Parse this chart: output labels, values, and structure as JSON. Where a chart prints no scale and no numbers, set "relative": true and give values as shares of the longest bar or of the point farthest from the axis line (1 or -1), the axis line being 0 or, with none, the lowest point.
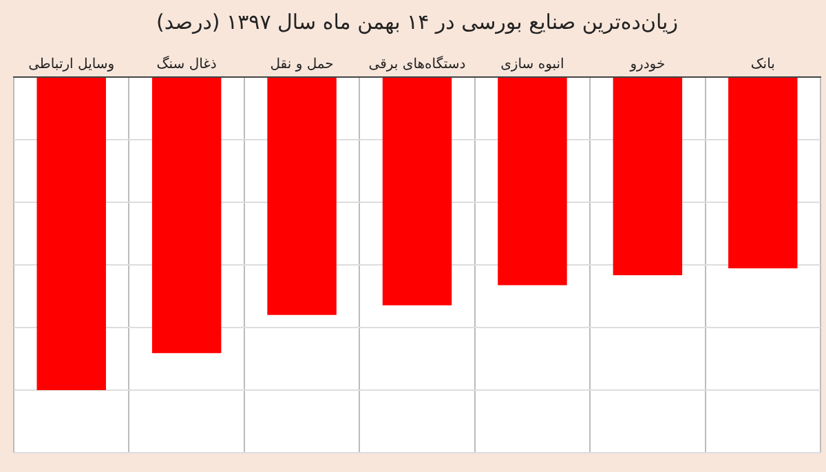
{
  "chart_data": {
    "type": "bar",
    "title": "زیان‌ده‌ترین صنایع بورسی در ۱۴ بهمن ماه سال ۱۳۹۷ (درصد)",
    "categories": [
      "وسایل ارتباطی",
      "ذغال سنگ",
      "حمل و نقل",
      "دستگاه‌های برقی",
      "انبوه سازی",
      "خودرو",
      "بانک"
    ],
    "values": [
      -1,
      -0.882,
      -0.76,
      -0.729,
      -0.665,
      -0.633,
      -0.611
    ],
    "color": "#ff0000",
    "relative": true,
    "grid": true
  }
}
